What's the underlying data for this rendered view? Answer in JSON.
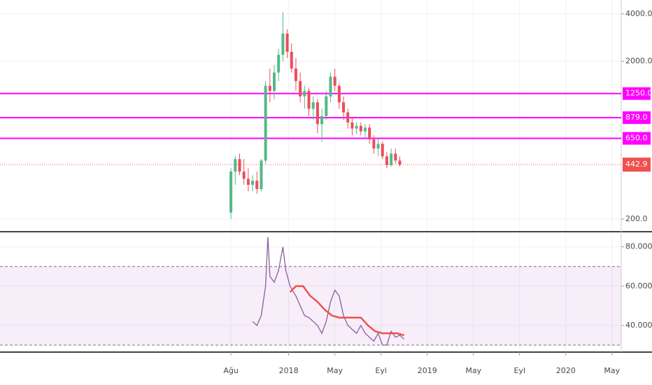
{
  "chart_data": [
    {
      "type": "candlestick",
      "log": true,
      "grid": true,
      "up_color": "#53b987",
      "down_color": "#eb4d5c",
      "xlim": [
        -20,
        33.8
      ],
      "ylim": [
        168,
        4900
      ],
      "yticks": [
        {
          "value": 200,
          "label": "200.0"
        },
        {
          "value": 2000,
          "label": "2000.0"
        },
        {
          "value": 4000,
          "label": "4000.0"
        }
      ],
      "levels": [
        {
          "value": 1250,
          "label": "1250.0"
        },
        {
          "value": 879,
          "label": "879.0"
        },
        {
          "value": 650,
          "label": "650.0"
        }
      ],
      "level_color": "#ff00ff",
      "last_price": 442.9,
      "last_price_color": "#f0504d",
      "x": [
        0,
        0.375,
        0.75,
        1.125,
        1.5,
        1.875,
        2.25,
        2.625,
        3,
        3.375,
        3.75,
        4.125,
        4.5,
        4.875,
        5.25,
        5.625,
        6,
        6.375,
        6.75,
        7.125,
        7.5,
        7.875,
        8.25,
        8.625,
        9,
        9.375,
        9.75,
        10.125,
        10.5,
        10.875,
        11.25,
        11.625,
        12,
        12.375,
        12.75,
        13.125,
        13.5,
        13.875,
        14.25,
        14.625
      ],
      "open": [
        220,
        400,
        480,
        400,
        360,
        330,
        350,
        310,
        470,
        1400,
        1300,
        1700,
        2200,
        3000,
        2300,
        1800,
        1500,
        1200,
        1300,
        1000,
        1100,
        800,
        900,
        1200,
        1600,
        1400,
        1100,
        950,
        820,
        750,
        780,
        720,
        760,
        640,
        560,
        600,
        500,
        440,
        520,
        470
      ],
      "high": [
        420,
        500,
        520,
        480,
        420,
        380,
        400,
        480,
        1500,
        1800,
        1900,
        2400,
        4100,
        3200,
        2600,
        2100,
        1700,
        1400,
        1350,
        1200,
        1150,
        1000,
        1300,
        1700,
        1800,
        1450,
        1200,
        1000,
        880,
        820,
        820,
        800,
        800,
        680,
        650,
        620,
        530,
        560,
        560,
        500
      ],
      "low": [
        200,
        330,
        380,
        330,
        300,
        300,
        290,
        300,
        450,
        1100,
        1150,
        1500,
        2000,
        2100,
        1700,
        1300,
        1100,
        1000,
        900,
        850,
        700,
        620,
        850,
        1100,
        1300,
        1000,
        850,
        750,
        680,
        690,
        680,
        660,
        600,
        520,
        500,
        480,
        420,
        430,
        450,
        430
      ],
      "close": [
        400,
        480,
        400,
        360,
        330,
        350,
        310,
        470,
        1400,
        1300,
        1700,
        2200,
        3000,
        2300,
        1800,
        1500,
        1200,
        1300,
        1000,
        1100,
        800,
        900,
        1200,
        1600,
        1400,
        1100,
        950,
        820,
        750,
        780,
        720,
        760,
        640,
        560,
        600,
        500,
        440,
        520,
        470,
        442.9
      ]
    },
    {
      "type": "line",
      "grid": true,
      "xlim": [
        -20,
        33.8
      ],
      "ylim": [
        27.5,
        87
      ],
      "yticks": [
        {
          "value": 40,
          "label": "40.0000"
        },
        {
          "value": 60,
          "label": "60.0000"
        },
        {
          "value": 80,
          "label": "80.0000"
        }
      ],
      "band": [
        30,
        70
      ],
      "band_color": "#9c27b0",
      "xticks": [
        {
          "value": 0,
          "label": "Ağu"
        },
        {
          "value": 5,
          "label": "2018"
        },
        {
          "value": 9,
          "label": "May"
        },
        {
          "value": 13,
          "label": "Eyl"
        },
        {
          "value": 17,
          "label": "2019"
        },
        {
          "value": 21,
          "label": "May"
        },
        {
          "value": 25,
          "label": "Eyl"
        },
        {
          "value": 29,
          "label": "2020"
        },
        {
          "value": 33,
          "label": "May"
        }
      ],
      "series": [
        {
          "color": "#8e5d9f",
          "x": [
            1.875,
            2.25,
            2.625,
            3,
            3.2,
            3.375,
            3.75,
            4.125,
            4.5,
            4.75,
            5.125,
            5.625,
            6,
            6.375,
            6.75,
            7.125,
            7.5,
            7.875,
            8.25,
            8.625,
            9,
            9.375,
            9.75,
            10.125,
            10.5,
            10.875,
            11.25,
            11.625,
            12,
            12.375,
            12.75,
            13.125,
            13.5,
            13.875,
            14.25,
            14.625,
            15
          ],
          "values": [
            42,
            40,
            45,
            60,
            85,
            65,
            62,
            68,
            80,
            68,
            60,
            55,
            50,
            45,
            44,
            42,
            40,
            36,
            42,
            52,
            58,
            55,
            45,
            40,
            38,
            36,
            40,
            36,
            34,
            32,
            36,
            30,
            30,
            37,
            34,
            35,
            33
          ]
        },
        {
          "color": "#f0504d",
          "x": [
            5.125,
            5.625,
            6.25,
            6.875,
            7.5,
            8.125,
            8.75,
            9.375,
            10,
            10.625,
            11.25,
            11.875,
            12.5,
            13.125,
            13.75,
            14.375,
            15
          ],
          "values": [
            57,
            60,
            60,
            55,
            52,
            48,
            45,
            44,
            44,
            44,
            44,
            40,
            37,
            36,
            36,
            36,
            35
          ]
        }
      ]
    }
  ]
}
